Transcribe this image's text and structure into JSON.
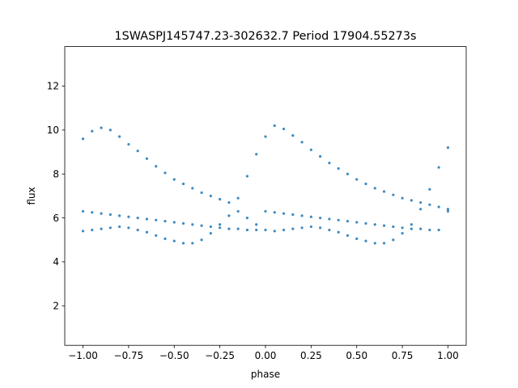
{
  "chart_data": {
    "type": "scatter",
    "title": "1SWASPJ145747.23-302632.7 Period 17904.55273s",
    "xlabel": "phase",
    "ylabel": "flux",
    "xlim": [
      -1.1,
      1.1
    ],
    "ylim": [
      0.2,
      13.8
    ],
    "x_ticks": [
      -1.0,
      -0.75,
      -0.5,
      -0.25,
      0.0,
      0.25,
      0.5,
      0.75,
      1.0
    ],
    "x_tick_labels": [
      "−1.00",
      "−0.75",
      "−0.50",
      "−0.25",
      "0.00",
      "0.25",
      "0.50",
      "0.75",
      "1.00"
    ],
    "y_ticks": [
      2,
      4,
      6,
      8,
      10,
      12
    ],
    "y_tick_labels": [
      "2",
      "4",
      "6",
      "8",
      "10",
      "12"
    ],
    "grid": false,
    "legend": "none",
    "point_color": "#1f77b4",
    "series": [
      {
        "name": "",
        "x": [
          -1.0,
          -0.95,
          -0.9,
          -0.85,
          -0.8,
          -0.75,
          -0.7,
          -0.65,
          -0.6,
          -0.55,
          -0.5,
          -0.45,
          -0.4,
          -0.35,
          -0.3,
          -0.25,
          -0.2,
          -0.15,
          -0.1,
          -0.05,
          0.0,
          0.05,
          0.1,
          0.15,
          0.2,
          0.25,
          0.3,
          0.35,
          0.4,
          0.45,
          0.5,
          0.55,
          0.6,
          0.65,
          0.7,
          0.75,
          0.8,
          0.85,
          0.9,
          0.95,
          1.0,
          -1.0,
          -0.95,
          -0.9,
          -0.85,
          -0.8,
          -0.75,
          -0.7,
          -0.65,
          -0.6,
          -0.55,
          -0.5,
          -0.45,
          -0.4,
          -0.35,
          -0.3,
          -0.25,
          -0.2,
          -0.15,
          -0.1,
          -0.05,
          0.0,
          0.05,
          0.1,
          0.15,
          0.2,
          0.25,
          0.3,
          0.35,
          0.4,
          0.45,
          0.5,
          0.55,
          0.6,
          0.65,
          0.7,
          0.75,
          0.8,
          0.85,
          0.9,
          0.95,
          1.0,
          -1.0,
          -0.95,
          -0.9,
          -0.85,
          -0.8,
          -0.75,
          -0.7,
          -0.65,
          -0.6,
          -0.55,
          -0.5,
          -0.45,
          -0.4,
          -0.35,
          -0.3,
          -0.25,
          -0.2,
          -0.15,
          -0.1,
          -0.05,
          0.0,
          0.05,
          0.1,
          0.15,
          0.2,
          0.25,
          0.3,
          0.35,
          0.4,
          0.45,
          0.5,
          0.55,
          0.6,
          0.65,
          0.7,
          0.75,
          0.8,
          0.85,
          0.9,
          0.95,
          1.0
        ],
        "y": [
          9.6,
          9.95,
          10.1,
          10.0,
          9.7,
          9.35,
          9.05,
          8.7,
          8.35,
          8.05,
          7.75,
          7.55,
          7.35,
          7.15,
          7.0,
          6.85,
          6.7,
          6.9,
          7.9,
          8.9,
          9.7,
          10.2,
          10.05,
          9.75,
          9.45,
          9.1,
          8.8,
          8.5,
          8.25,
          8.0,
          7.75,
          7.55,
          7.35,
          7.2,
          7.05,
          6.9,
          6.8,
          6.7,
          6.6,
          6.5,
          6.4,
          6.3,
          6.25,
          6.2,
          6.15,
          6.1,
          6.05,
          6.0,
          5.95,
          5.9,
          5.85,
          5.8,
          5.75,
          5.7,
          5.65,
          5.6,
          5.55,
          5.5,
          5.5,
          5.45,
          5.45,
          6.3,
          6.25,
          6.2,
          6.15,
          6.1,
          6.05,
          6.0,
          5.95,
          5.9,
          5.85,
          5.8,
          5.75,
          5.7,
          5.65,
          5.6,
          5.55,
          5.5,
          5.5,
          5.45,
          5.45,
          6.3,
          5.4,
          5.45,
          5.5,
          5.55,
          5.6,
          5.55,
          5.45,
          5.35,
          5.2,
          5.05,
          4.95,
          4.85,
          4.85,
          5.0,
          5.3,
          5.7,
          6.1,
          6.3,
          6.0,
          5.7,
          5.45,
          5.4,
          5.45,
          5.5,
          5.55,
          5.6,
          5.55,
          5.45,
          5.35,
          5.2,
          5.05,
          4.95,
          4.85,
          4.85,
          5.0,
          5.3,
          5.7,
          6.4,
          7.3,
          8.3,
          9.2
        ]
      }
    ]
  }
}
